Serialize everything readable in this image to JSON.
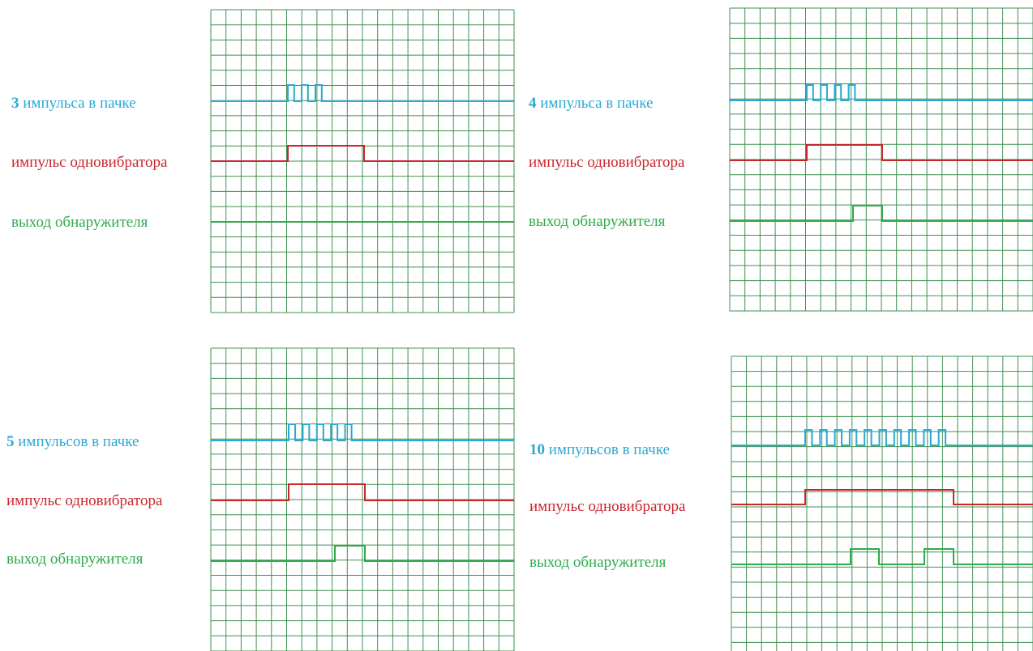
{
  "colors": {
    "grid": "#3f8f50",
    "burst": "#29a9d6",
    "oneshot": "#c8262d",
    "detector": "#2faa4c",
    "background": "#ffffff"
  },
  "panels": [
    {
      "id": "panel-3",
      "burst_count": "3",
      "burst_text": "импульса в пачке",
      "oneshot_text": "импульс одновибратора",
      "detector_text": "выход обнаружителя",
      "burst_pulses": 3,
      "detector_pulses": 0
    },
    {
      "id": "panel-4",
      "burst_count": "4",
      "burst_text": "импульса в пачке",
      "oneshot_text": "импульс одновибратора",
      "detector_text": "выход обнаружителя",
      "burst_pulses": 4,
      "detector_pulses": 1
    },
    {
      "id": "panel-5",
      "burst_count": "5",
      "burst_text": "импульсов в пачке",
      "oneshot_text": "импульс одновибратора",
      "detector_text": "выход обнаружителя",
      "burst_pulses": 5,
      "detector_pulses": 1
    },
    {
      "id": "panel-10",
      "burst_count": "10",
      "burst_text": "импульсов в пачке",
      "oneshot_text": "импульс одновибратора",
      "detector_text": "выход обнаружителя",
      "burst_pulses": 10,
      "detector_pulses": 2
    }
  ]
}
